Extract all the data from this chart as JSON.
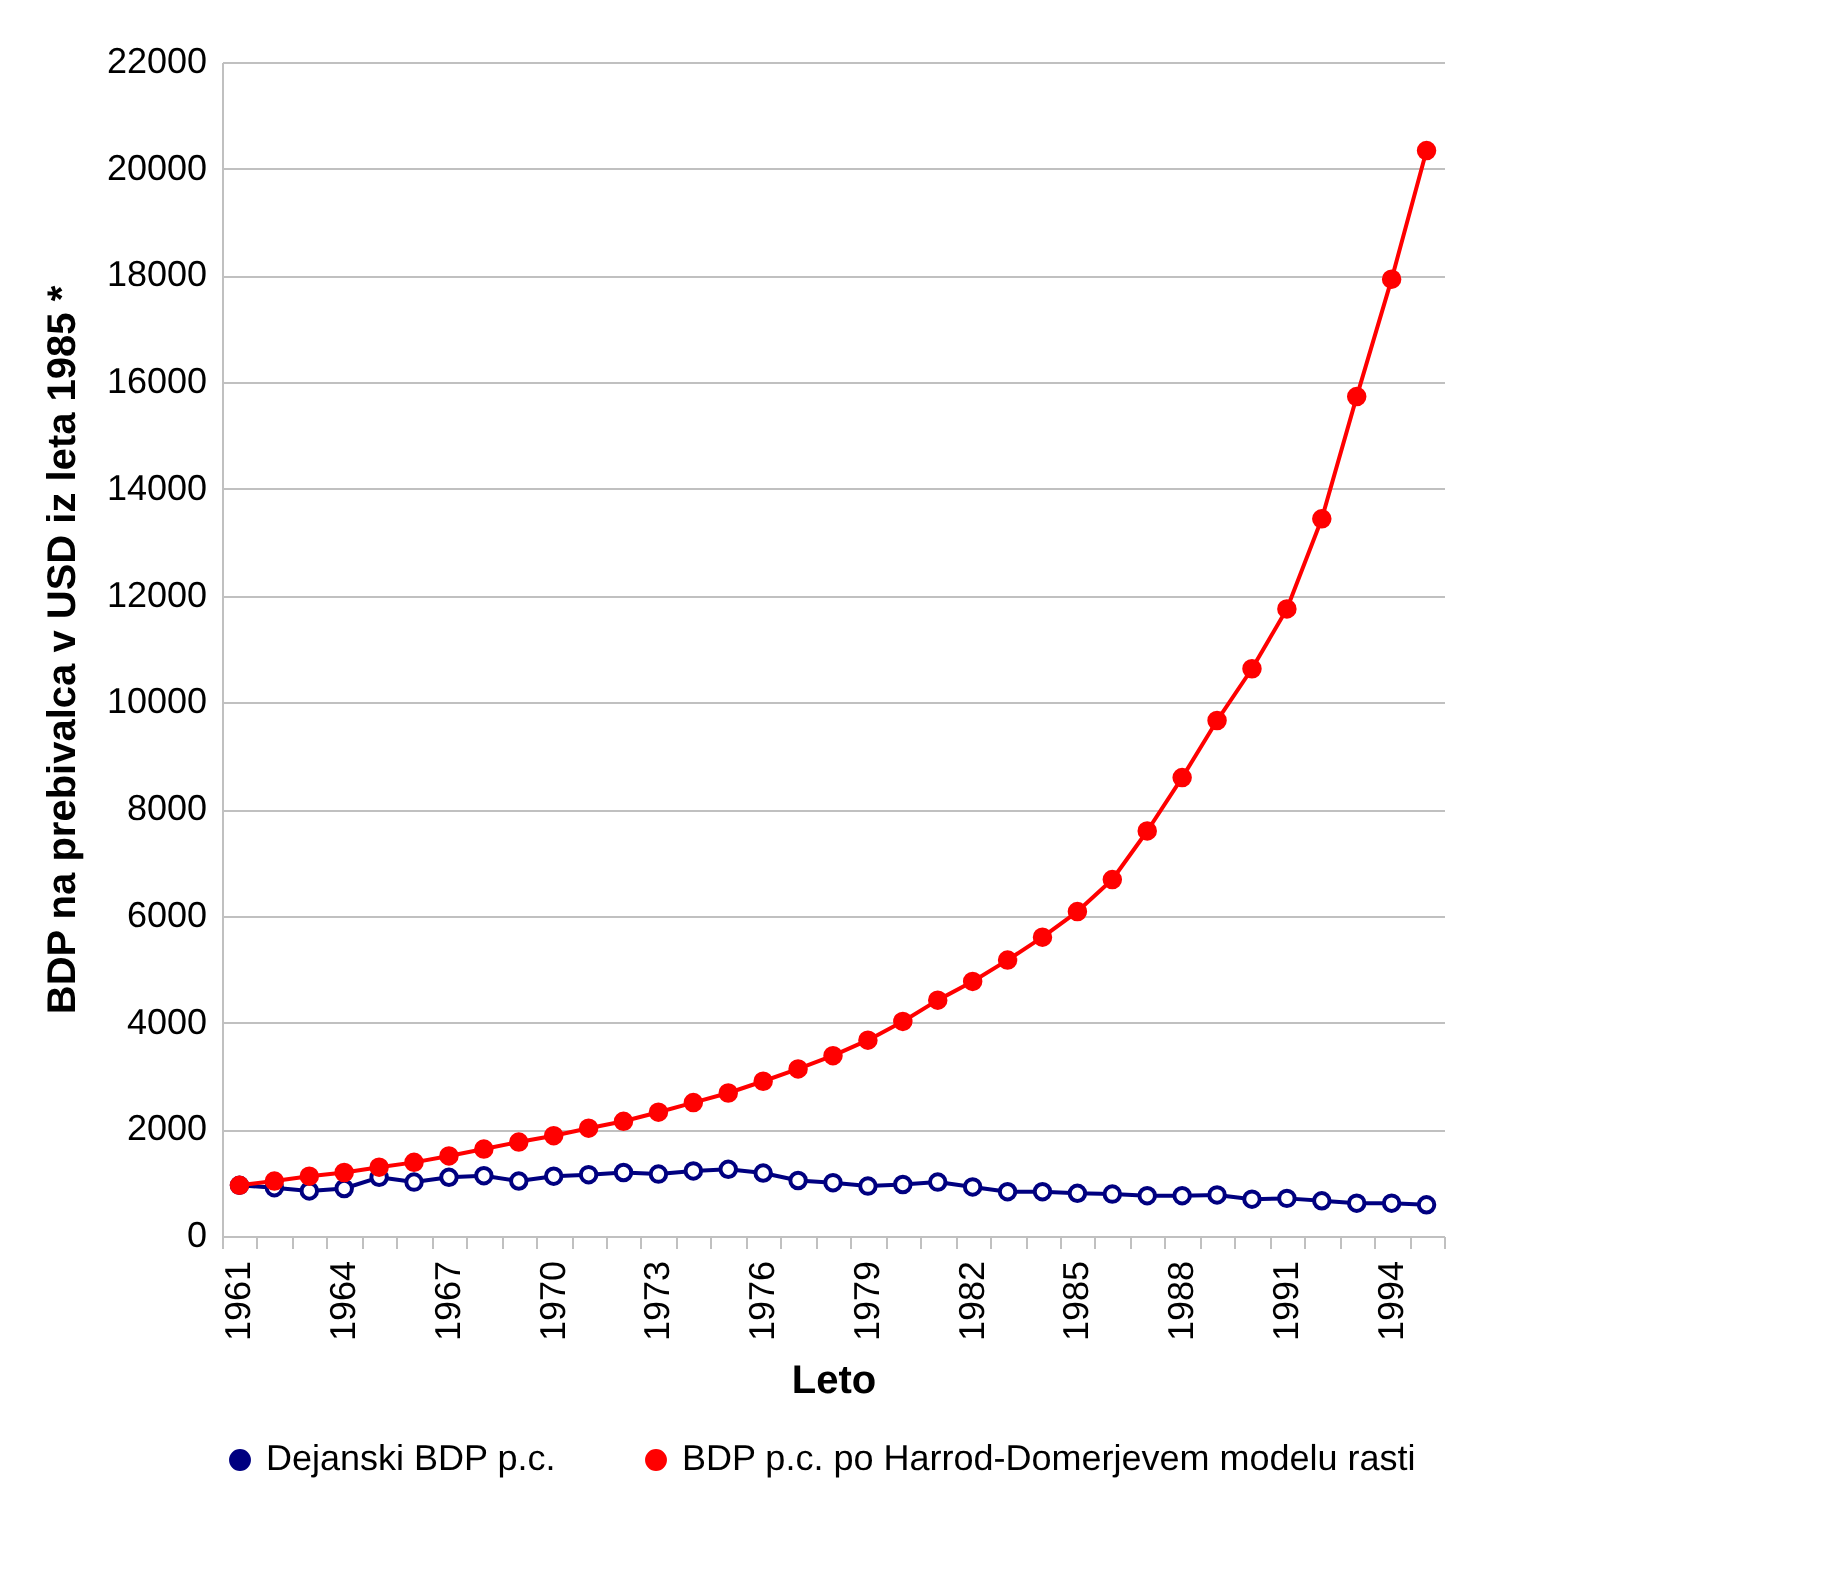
{
  "chart_data": {
    "type": "line",
    "xlabel": "Leto",
    "ylabel": "BDP na prebivalca v USD iz leta 1985 *",
    "categories": [
      "1961",
      null,
      null,
      "1964",
      null,
      null,
      "1967",
      null,
      null,
      "1970",
      null,
      null,
      "1973",
      null,
      null,
      "1976",
      null,
      null,
      "1979",
      null,
      null,
      "1982",
      null,
      null,
      "1985",
      null,
      null,
      "1988",
      null,
      null,
      "1991",
      null,
      null,
      "1994",
      null
    ],
    "series": [
      {
        "name": "Dejanski BDP p.c.",
        "color": "#000080",
        "values": [
          950,
          905,
          845,
          890,
          1100,
          1010,
          1100,
          1130,
          1030,
          1120,
          1150,
          1190,
          1160,
          1220,
          1250,
          1180,
          1040,
          1000,
          935,
          965,
          1010,
          920,
          830,
          830,
          800,
          785,
          755,
          755,
          770,
          690,
          705,
          660,
          615,
          615,
          585
        ]
      },
      {
        "name": "BDP p.c. po Harrod-Domerjevem modelu rasti",
        "color": "#ff0000",
        "values": [
          950,
          1030,
          1120,
          1190,
          1290,
          1380,
          1500,
          1630,
          1760,
          1880,
          2020,
          2150,
          2320,
          2500,
          2680,
          2900,
          3130,
          3380,
          3670,
          4020,
          4420,
          4770,
          5170,
          5600,
          6080,
          6680,
          7590,
          8590,
          9660,
          10630,
          11750,
          13440,
          15730,
          17930,
          20340
        ]
      }
    ],
    "ylim": [
      0,
      22000
    ],
    "yticks": [
      0,
      2000,
      4000,
      6000,
      8000,
      10000,
      12000,
      14000,
      16000,
      18000,
      20000,
      22000
    ],
    "grid": "y",
    "legend": "bottom",
    "marker": "circle",
    "line_style": "solid"
  }
}
